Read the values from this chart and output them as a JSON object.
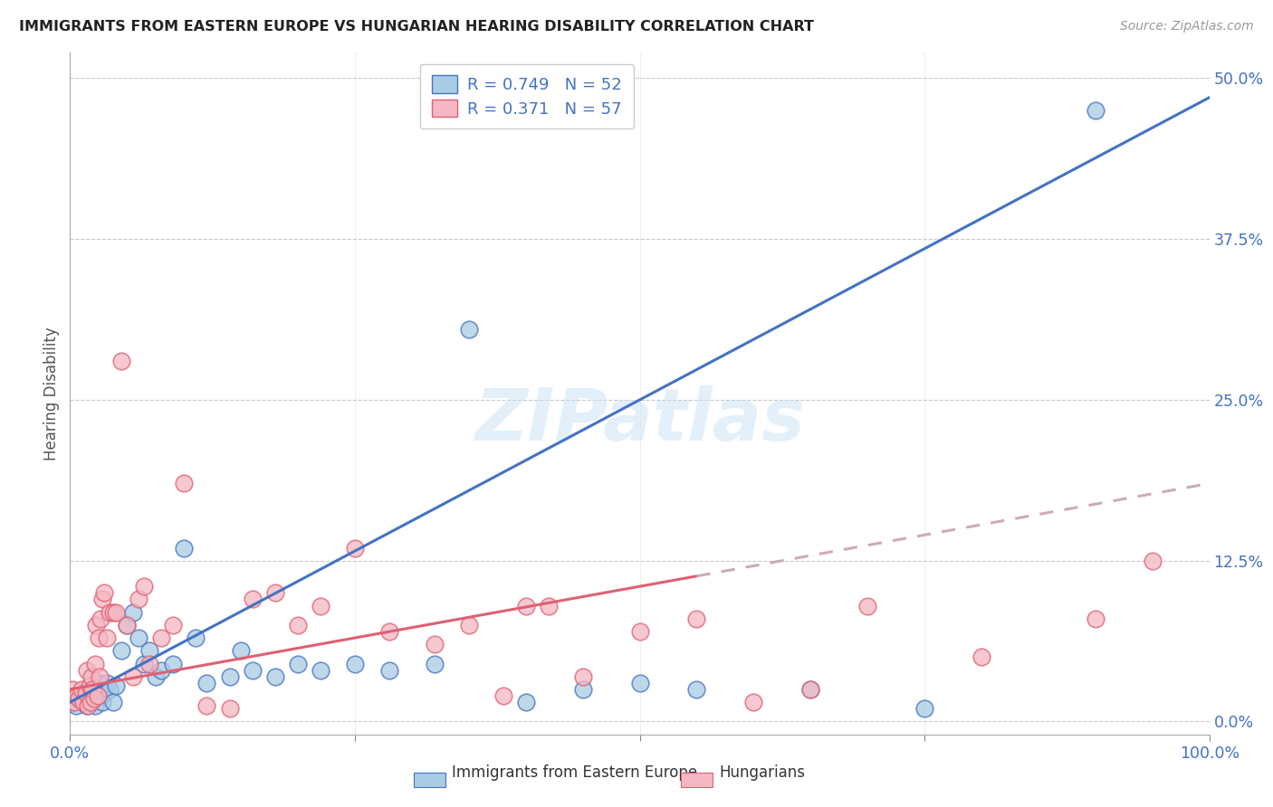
{
  "title": "IMMIGRANTS FROM EASTERN EUROPE VS HUNGARIAN HEARING DISABILITY CORRELATION CHART",
  "source": "Source: ZipAtlas.com",
  "ylabel": "Hearing Disability",
  "ytick_vals": [
    0.0,
    12.5,
    25.0,
    37.5,
    50.0
  ],
  "xlim": [
    0,
    100
  ],
  "ylim": [
    -1,
    52
  ],
  "legend_r1": "R = 0.749   N = 52",
  "legend_r2": "R = 0.371   N = 57",
  "color_blue": "#a8cce4",
  "color_pink": "#f4b8c4",
  "line_blue": "#4472c4",
  "line_pink": "#e06070",
  "line_dashed_color": "#ccaabb",
  "watermark": "ZIPatlas",
  "blue_slope": 0.47,
  "blue_intercept": 1.5,
  "pink_slope": 0.16,
  "pink_intercept": 2.5,
  "blue_x": [
    0.3,
    0.5,
    0.8,
    1.0,
    1.2,
    1.4,
    1.5,
    1.6,
    1.7,
    1.8,
    1.9,
    2.0,
    2.1,
    2.2,
    2.3,
    2.5,
    2.6,
    2.8,
    3.0,
    3.2,
    3.5,
    3.8,
    4.0,
    4.5,
    5.0,
    5.5,
    6.0,
    6.5,
    7.0,
    7.5,
    8.0,
    9.0,
    10.0,
    11.0,
    12.0,
    14.0,
    15.0,
    16.0,
    18.0,
    20.0,
    22.0,
    25.0,
    28.0,
    32.0,
    35.0,
    40.0,
    45.0,
    50.0,
    55.0,
    65.0,
    75.0,
    90.0
  ],
  "blue_y": [
    1.5,
    1.2,
    2.0,
    1.8,
    1.5,
    2.0,
    1.2,
    2.5,
    1.8,
    1.5,
    2.2,
    1.8,
    2.5,
    1.2,
    2.0,
    3.0,
    2.5,
    1.5,
    2.2,
    3.0,
    2.5,
    1.5,
    2.8,
    5.5,
    7.5,
    8.5,
    6.5,
    4.5,
    5.5,
    3.5,
    4.0,
    4.5,
    13.5,
    6.5,
    3.0,
    3.5,
    5.5,
    4.0,
    3.5,
    4.5,
    4.0,
    4.5,
    4.0,
    4.5,
    30.5,
    1.5,
    2.5,
    3.0,
    2.5,
    2.5,
    1.0,
    47.5
  ],
  "pink_x": [
    0.2,
    0.4,
    0.6,
    0.8,
    1.0,
    1.2,
    1.4,
    1.5,
    1.6,
    1.7,
    1.8,
    1.9,
    2.0,
    2.1,
    2.2,
    2.3,
    2.4,
    2.5,
    2.6,
    2.7,
    2.8,
    3.0,
    3.2,
    3.5,
    3.8,
    4.0,
    4.5,
    5.0,
    5.5,
    6.0,
    6.5,
    7.0,
    8.0,
    9.0,
    10.0,
    12.0,
    14.0,
    16.0,
    18.0,
    20.0,
    22.0,
    25.0,
    28.0,
    32.0,
    35.0,
    38.0,
    40.0,
    42.0,
    45.0,
    50.0,
    55.0,
    60.0,
    65.0,
    70.0,
    80.0,
    90.0,
    95.0
  ],
  "pink_y": [
    2.5,
    1.5,
    2.0,
    1.8,
    2.5,
    1.5,
    2.2,
    4.0,
    1.2,
    2.8,
    1.5,
    3.5,
    2.5,
    1.8,
    4.5,
    7.5,
    2.0,
    6.5,
    3.5,
    8.0,
    9.5,
    10.0,
    6.5,
    8.5,
    8.5,
    8.5,
    28.0,
    7.5,
    3.5,
    9.5,
    10.5,
    4.5,
    6.5,
    7.5,
    18.5,
    1.2,
    1.0,
    9.5,
    10.0,
    7.5,
    9.0,
    13.5,
    7.0,
    6.0,
    7.5,
    2.0,
    9.0,
    9.0,
    3.5,
    7.0,
    8.0,
    1.5,
    2.5,
    9.0,
    5.0,
    8.0,
    12.5
  ]
}
